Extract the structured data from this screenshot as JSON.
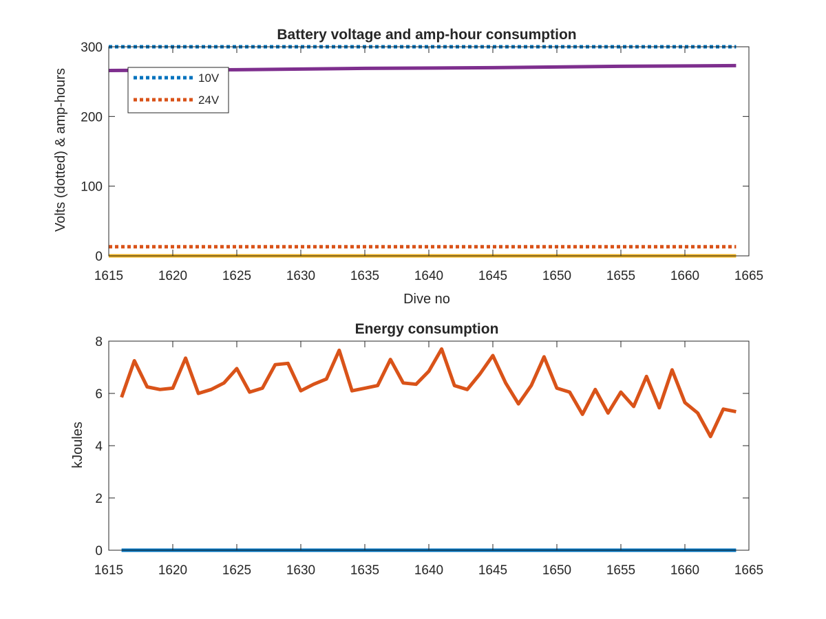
{
  "chart_data": [
    {
      "type": "line",
      "title": "Battery voltage and amp-hour consumption",
      "xlabel": "Dive no",
      "ylabel": "Volts (dotted) & amp-hours",
      "xlim": [
        1615,
        1665
      ],
      "ylim": [
        0,
        300
      ],
      "xticks": [
        1615,
        1620,
        1625,
        1630,
        1635,
        1640,
        1645,
        1650,
        1655,
        1660,
        1665
      ],
      "yticks": [
        0,
        100,
        200,
        300
      ],
      "grid": false,
      "legend": {
        "position": "top-left",
        "entries": [
          "10V",
          "24V"
        ]
      },
      "series": [
        {
          "name": "10V",
          "style": "dotted",
          "color": "#0072BD",
          "x": [
            1615,
            1664
          ],
          "y": [
            300,
            300
          ]
        },
        {
          "name": "24V",
          "style": "dotted",
          "color": "#D95319",
          "x": [
            1615,
            1664
          ],
          "y": [
            13,
            13
          ]
        },
        {
          "style": "solid",
          "color": "#EDB120",
          "x": [
            1615,
            1664
          ],
          "y": [
            0,
            0
          ]
        },
        {
          "style": "solid",
          "color": "#7E2F8E",
          "x": [
            1615,
            1625,
            1635,
            1645,
            1655,
            1664
          ],
          "y": [
            266,
            267,
            269,
            270,
            272,
            273
          ]
        }
      ]
    },
    {
      "type": "line",
      "title": "Energy consumption",
      "xlabel": "",
      "ylabel": "kJoules",
      "xlim": [
        1615,
        1665
      ],
      "ylim": [
        0,
        8
      ],
      "xticks": [
        1615,
        1620,
        1625,
        1630,
        1635,
        1640,
        1645,
        1650,
        1655,
        1660,
        1665
      ],
      "yticks": [
        0,
        2,
        4,
        6,
        8
      ],
      "grid": false,
      "series": [
        {
          "style": "solid",
          "color": "#D95319",
          "x": [
            1616,
            1617,
            1618,
            1619,
            1620,
            1621,
            1622,
            1623,
            1624,
            1625,
            1626,
            1627,
            1628,
            1629,
            1630,
            1631,
            1632,
            1633,
            1634,
            1635,
            1636,
            1637,
            1638,
            1639,
            1640,
            1641,
            1642,
            1643,
            1644,
            1645,
            1646,
            1647,
            1648,
            1649,
            1650,
            1651,
            1652,
            1653,
            1654,
            1655,
            1656,
            1657,
            1658,
            1659,
            1660,
            1661,
            1662,
            1663,
            1664
          ],
          "y": [
            5.85,
            7.25,
            6.25,
            6.15,
            6.2,
            7.35,
            6.0,
            6.15,
            6.4,
            6.95,
            6.05,
            6.2,
            7.1,
            7.15,
            6.1,
            6.35,
            6.55,
            7.65,
            6.1,
            6.2,
            6.3,
            7.3,
            6.4,
            6.35,
            6.85,
            7.7,
            6.3,
            6.15,
            6.75,
            7.45,
            6.4,
            5.6,
            6.3,
            7.4,
            6.2,
            6.05,
            5.2,
            6.15,
            5.25,
            6.05,
            5.5,
            6.65,
            5.45,
            6.9,
            5.65,
            5.25,
            4.35,
            5.4,
            5.3
          ]
        },
        {
          "style": "solid",
          "color": "#0072BD",
          "x": [
            1616,
            1664
          ],
          "y": [
            0,
            0
          ]
        }
      ]
    }
  ]
}
